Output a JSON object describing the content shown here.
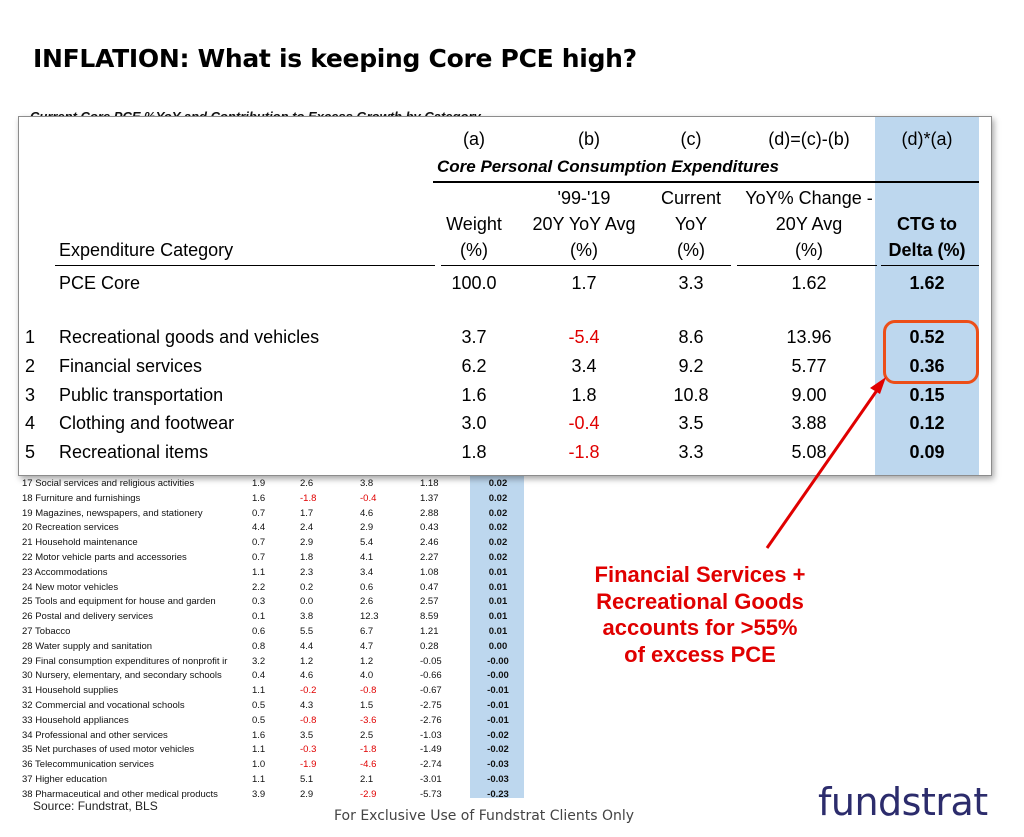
{
  "title": "INFLATION: What is keeping Core PCE high?",
  "subtitle": "Current Core PCE %YoY and Contribution to Excess Growth by Category",
  "zoom_table": {
    "col_letters": {
      "a": "(a)",
      "b": "(b)",
      "c": "(c)",
      "d": "(d)=(c)-(b)",
      "e": "(d)*(a)"
    },
    "group_label": "Core Personal Consumption Expenditures",
    "headers": {
      "weight": [
        "Weight",
        "(%)"
      ],
      "avg": [
        "'99-'19",
        "20Y YoY Avg",
        "(%)"
      ],
      "current": [
        "Current",
        "YoY",
        "(%)"
      ],
      "change": [
        "YoY% Change -",
        "20Y Avg",
        "(%)"
      ],
      "ctg": [
        "CTG to",
        "Delta (%)"
      ],
      "category": "Expenditure Category"
    },
    "total": {
      "label": "PCE Core",
      "weight": "100.0",
      "avg": "1.7",
      "current": "3.3",
      "change": "1.62",
      "ctg": "1.62"
    },
    "rows": [
      {
        "num": "1",
        "label": "Recreational goods and vehicles",
        "weight": "3.7",
        "avg": "-5.4",
        "current": "8.6",
        "change": "13.96",
        "ctg": "0.52"
      },
      {
        "num": "2",
        "label": "Financial services",
        "weight": "6.2",
        "avg": "3.4",
        "current": "9.2",
        "change": "5.77",
        "ctg": "0.36"
      },
      {
        "num": "3",
        "label": "Public transportation",
        "weight": "1.6",
        "avg": "1.8",
        "current": "10.8",
        "change": "9.00",
        "ctg": "0.15"
      },
      {
        "num": "4",
        "label": "Clothing and footwear",
        "weight": "3.0",
        "avg": "-0.4",
        "current": "3.5",
        "change": "3.88",
        "ctg": "0.12"
      },
      {
        "num": "5",
        "label": "Recreational items",
        "weight": "1.8",
        "avg": "-1.8",
        "current": "3.3",
        "change": "5.08",
        "ctg": "0.09"
      }
    ]
  },
  "small_table": {
    "rows": [
      {
        "label": "17 Social services and religious activities",
        "w": "1.9",
        "a": "2.6",
        "c": "3.8",
        "d": "1.18",
        "ctg": "0.02"
      },
      {
        "label": "18 Furniture and furnishings",
        "w": "1.6",
        "a": "-1.8",
        "c": "-0.4",
        "d": "1.37",
        "ctg": "0.02"
      },
      {
        "label": "19 Magazines, newspapers, and stationery",
        "w": "0.7",
        "a": "1.7",
        "c": "4.6",
        "d": "2.88",
        "ctg": "0.02"
      },
      {
        "label": "20 Recreation services",
        "w": "4.4",
        "a": "2.4",
        "c": "2.9",
        "d": "0.43",
        "ctg": "0.02"
      },
      {
        "label": "21 Household maintenance",
        "w": "0.7",
        "a": "2.9",
        "c": "5.4",
        "d": "2.46",
        "ctg": "0.02"
      },
      {
        "label": "22 Motor vehicle parts and accessories",
        "w": "0.7",
        "a": "1.8",
        "c": "4.1",
        "d": "2.27",
        "ctg": "0.02"
      },
      {
        "label": "23 Accommodations",
        "w": "1.1",
        "a": "2.3",
        "c": "3.4",
        "d": "1.08",
        "ctg": "0.01"
      },
      {
        "label": "24 New motor vehicles",
        "w": "2.2",
        "a": "0.2",
        "c": "0.6",
        "d": "0.47",
        "ctg": "0.01"
      },
      {
        "label": "25 Tools and equipment for house and garden",
        "w": "0.3",
        "a": "0.0",
        "c": "2.6",
        "d": "2.57",
        "ctg": "0.01"
      },
      {
        "label": "26 Postal and delivery services",
        "w": "0.1",
        "a": "3.8",
        "c": "12.3",
        "d": "8.59",
        "ctg": "0.01"
      },
      {
        "label": "27 Tobacco",
        "w": "0.6",
        "a": "5.5",
        "c": "6.7",
        "d": "1.21",
        "ctg": "0.01"
      },
      {
        "label": "28 Water supply and sanitation",
        "w": "0.8",
        "a": "4.4",
        "c": "4.7",
        "d": "0.28",
        "ctg": "0.00"
      },
      {
        "label": "29 Final consumption expenditures of nonprofit ir",
        "w": "3.2",
        "a": "1.2",
        "c": "1.2",
        "d": "-0.05",
        "ctg": "-0.00"
      },
      {
        "label": "30 Nursery, elementary, and secondary schools",
        "w": "0.4",
        "a": "4.6",
        "c": "4.0",
        "d": "-0.66",
        "ctg": "-0.00"
      },
      {
        "label": "31 Household supplies",
        "w": "1.1",
        "a": "-0.2",
        "c": "-0.8",
        "d": "-0.67",
        "ctg": "-0.01"
      },
      {
        "label": "32 Commercial and vocational schools",
        "w": "0.5",
        "a": "4.3",
        "c": "1.5",
        "d": "-2.75",
        "ctg": "-0.01"
      },
      {
        "label": "33 Household appliances",
        "w": "0.5",
        "a": "-0.8",
        "c": "-3.6",
        "d": "-2.76",
        "ctg": "-0.01"
      },
      {
        "label": "34 Professional and other services",
        "w": "1.6",
        "a": "3.5",
        "c": "2.5",
        "d": "-1.03",
        "ctg": "-0.02"
      },
      {
        "label": "35 Net purchases of used motor vehicles",
        "w": "1.1",
        "a": "-0.3",
        "c": "-1.8",
        "d": "-1.49",
        "ctg": "-0.02"
      },
      {
        "label": "36 Telecommunication services",
        "w": "1.0",
        "a": "-1.9",
        "c": "-4.6",
        "d": "-2.74",
        "ctg": "-0.03"
      },
      {
        "label": "37 Higher education",
        "w": "1.1",
        "a": "5.1",
        "c": "2.1",
        "d": "-3.01",
        "ctg": "-0.03"
      },
      {
        "label": "38 Pharmaceutical and other medical products",
        "w": "3.9",
        "a": "2.9",
        "c": "-2.9",
        "d": "-5.73",
        "ctg": "-0.23"
      }
    ]
  },
  "callout_lines": [
    "Financial Services +",
    "Recreational Goods",
    "accounts for >55%",
    "of excess PCE"
  ],
  "source": "Source: Fundstrat, BLS",
  "footer": "For Exclusive Use of Fundstrat Clients Only",
  "logo": "fundstrat",
  "colors": {
    "highlight": "#bdd7ee",
    "negative": "#e00000",
    "accent_box": "#ec4e18",
    "logo": "#2c2c6c"
  }
}
